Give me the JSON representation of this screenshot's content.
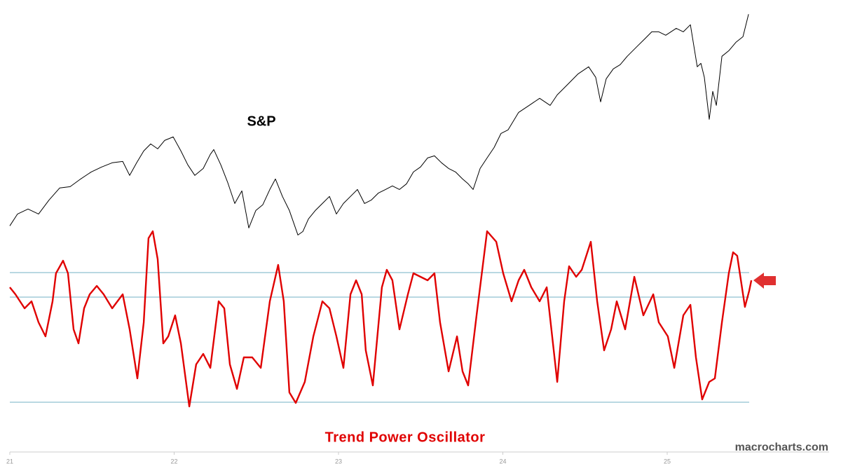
{
  "chart_data": {
    "type": "line",
    "annotations": [
      "S&P",
      "Trend Power Oscillator",
      "macrocharts.com"
    ],
    "xlim": [
      21,
      26
    ],
    "xticks": [
      21,
      22,
      23,
      24,
      25
    ],
    "ylim": [
      3400,
      6450
    ],
    "y2lim": [
      -4.3,
      2.6
    ],
    "reference_lines": [
      0.7,
      0,
      -3
    ],
    "reference_color": "#8fc0d0",
    "series": [
      {
        "color": "#000000",
        "x": [
          21.0,
          21.047,
          21.111,
          21.175,
          21.239,
          21.303,
          21.367,
          21.431,
          21.495,
          21.559,
          21.623,
          21.687,
          21.729,
          21.772,
          21.815,
          21.857,
          21.9,
          21.942,
          21.994,
          22.041,
          22.083,
          22.126,
          22.177,
          22.22,
          22.241,
          22.284,
          22.326,
          22.369,
          22.412,
          22.454,
          22.497,
          22.539,
          22.582,
          22.616,
          22.659,
          22.701,
          22.753,
          22.783,
          22.817,
          22.859,
          22.902,
          22.945,
          22.987,
          23.03,
          23.073,
          23.115,
          23.158,
          23.2,
          23.243,
          23.286,
          23.328,
          23.371,
          23.414,
          23.456,
          23.499,
          23.542,
          23.584,
          23.627,
          23.67,
          23.712,
          23.755,
          23.789,
          23.819,
          23.862,
          23.904,
          23.947,
          23.989,
          24.032,
          24.096,
          24.16,
          24.224,
          24.288,
          24.331,
          24.395,
          24.458,
          24.522,
          24.565,
          24.595,
          24.629,
          24.672,
          24.714,
          24.757,
          24.821,
          24.864,
          24.906,
          24.949,
          24.991,
          25.055,
          25.098,
          25.141,
          25.162,
          25.183,
          25.205,
          25.226,
          25.256,
          25.277,
          25.299,
          25.333,
          25.375,
          25.418,
          25.461,
          25.495
        ],
        "values": [
          3683,
          3830,
          3891,
          3830,
          4003,
          4151,
          4168,
          4263,
          4350,
          4411,
          4463,
          4480,
          4307,
          4463,
          4610,
          4696,
          4636,
          4740,
          4783,
          4610,
          4437,
          4307,
          4393,
          4567,
          4627,
          4437,
          4220,
          3960,
          4116,
          3657,
          3873,
          3943,
          4133,
          4263,
          4047,
          3873,
          3570,
          3613,
          3769,
          3873,
          3960,
          4047,
          3830,
          3960,
          4047,
          4133,
          3960,
          4003,
          4090,
          4133,
          4177,
          4133,
          4203,
          4350,
          4411,
          4523,
          4549,
          4463,
          4393,
          4350,
          4263,
          4203,
          4133,
          4393,
          4523,
          4653,
          4826,
          4870,
          5086,
          5173,
          5260,
          5173,
          5303,
          5433,
          5563,
          5650,
          5520,
          5216,
          5502,
          5624,
          5676,
          5780,
          5910,
          5996,
          6083,
          6083,
          6040,
          6126,
          6083,
          6170,
          5910,
          5650,
          5693,
          5520,
          5000,
          5346,
          5173,
          5780,
          5849,
          5953,
          6022,
          6300
        ]
      },
      {
        "color": "#e00000",
        "axis": "y2",
        "x": [
          21.0,
          21.034,
          21.09,
          21.132,
          21.175,
          21.217,
          21.26,
          21.281,
          21.324,
          21.354,
          21.388,
          21.418,
          21.452,
          21.486,
          21.529,
          21.571,
          21.623,
          21.687,
          21.729,
          21.776,
          21.815,
          21.844,
          21.87,
          21.9,
          21.934,
          21.964,
          22.006,
          22.041,
          22.092,
          22.134,
          22.177,
          22.22,
          22.271,
          22.305,
          22.339,
          22.382,
          22.424,
          22.475,
          22.527,
          22.582,
          22.633,
          22.667,
          22.701,
          22.74,
          22.795,
          22.847,
          22.902,
          22.945,
          22.987,
          23.03,
          23.073,
          23.107,
          23.141,
          23.166,
          23.209,
          23.264,
          23.294,
          23.328,
          23.371,
          23.422,
          23.456,
          23.499,
          23.542,
          23.584,
          23.618,
          23.67,
          23.721,
          23.755,
          23.789,
          23.84,
          23.904,
          23.96,
          24.002,
          24.053,
          24.096,
          24.13,
          24.173,
          24.224,
          24.267,
          24.331,
          24.373,
          24.403,
          24.446,
          24.48,
          24.535,
          24.574,
          24.616,
          24.659,
          24.693,
          24.744,
          24.8,
          24.855,
          24.915,
          24.949,
          25.004,
          25.043,
          25.098,
          25.141,
          25.175,
          25.213,
          25.256,
          25.29,
          25.333,
          25.375,
          25.401,
          25.426,
          25.473,
          25.499,
          25.512
        ],
        "values": [
          0.28,
          0.08,
          -0.32,
          -0.12,
          -0.72,
          -1.12,
          -0.12,
          0.68,
          1.04,
          0.68,
          -0.92,
          -1.32,
          -0.32,
          0.08,
          0.32,
          0.08,
          -0.32,
          0.08,
          -0.92,
          -2.32,
          -0.72,
          1.68,
          1.88,
          1.08,
          -1.32,
          -1.12,
          -0.52,
          -1.32,
          -3.12,
          -1.92,
          -1.62,
          -2.02,
          -0.12,
          -0.32,
          -1.92,
          -2.62,
          -1.72,
          -1.72,
          -2.02,
          -0.12,
          0.92,
          -0.12,
          -2.72,
          -3.02,
          -2.42,
          -1.12,
          -0.12,
          -0.32,
          -1.12,
          -2.02,
          0.08,
          0.48,
          0.08,
          -1.52,
          -2.52,
          0.28,
          0.78,
          0.48,
          -0.92,
          0.08,
          0.68,
          0.58,
          0.48,
          0.68,
          -0.72,
          -2.12,
          -1.12,
          -2.12,
          -2.52,
          -0.52,
          1.88,
          1.58,
          0.68,
          -0.12,
          0.48,
          0.78,
          0.28,
          -0.12,
          0.28,
          -2.42,
          -0.12,
          0.88,
          0.58,
          0.78,
          1.58,
          -0.12,
          -1.52,
          -0.92,
          -0.12,
          -0.92,
          0.58,
          -0.52,
          0.08,
          -0.72,
          -1.12,
          -2.02,
          -0.52,
          -0.22,
          -1.72,
          -2.92,
          -2.42,
          -2.32,
          -0.72,
          0.68,
          1.28,
          1.18,
          -0.28,
          0.18,
          0.48
        ]
      }
    ]
  }
}
